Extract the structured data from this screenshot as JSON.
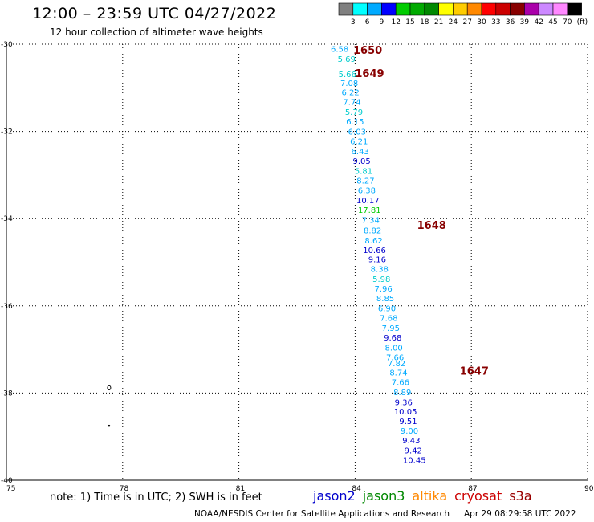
{
  "header": {
    "title": "12:00 – 23:59 UTC 04/27/2022",
    "subtitle": "12 hour collection of altimeter wave heights"
  },
  "footer": {
    "note": "note:  1) Time is in UTC;  2) SWH is in feet",
    "credit": "NOAA/NESDIS Center for Satellite Applications and Research",
    "timestamp": "Apr 29 08:29:58 UTC 2022"
  },
  "satellites": [
    {
      "name": "jason2",
      "color": "#0000cc"
    },
    {
      "name": "jason3",
      "color": "#008800"
    },
    {
      "name": "altika",
      "color": "#ff8800"
    },
    {
      "name": "cryosat",
      "color": "#cc0000"
    },
    {
      "name": "s3a",
      "color": "#990000"
    }
  ],
  "colorbar": {
    "labels": [
      "3",
      "6",
      "9",
      "12",
      "15",
      "18",
      "21",
      "24",
      "27",
      "30",
      "33",
      "36",
      "39",
      "42",
      "45",
      "70"
    ],
    "colors": [
      "#808080",
      "#00ffff",
      "#00aaff",
      "#0000ff",
      "#00cc00",
      "#00aa00",
      "#008800",
      "#ffff00",
      "#ffcc00",
      "#ff8800",
      "#ff0000",
      "#cc0000",
      "#880000",
      "#aa00aa",
      "#cc88ff",
      "#ff88ff",
      "#000000"
    ],
    "unit": "(ft)"
  },
  "chart_data": {
    "type": "scatter",
    "title": "12:00 – 23:59 UTC 04/27/2022",
    "subtitle": "12 hour collection of altimeter wave heights",
    "xlim": [
      75,
      90
    ],
    "ylim": [
      -40,
      -30
    ],
    "xticks": [
      "75",
      "78",
      "81",
      "84",
      "87",
      "90"
    ],
    "yticks": [
      "-30",
      "-32",
      "-34",
      "-36",
      "-38",
      "-40"
    ],
    "grid": true,
    "points": [
      {
        "lon": 83.6,
        "lat": -30.1,
        "swh": "6.58",
        "color": "#00aaff"
      },
      {
        "lon": 83.78,
        "lat": -30.33,
        "swh": "5.69",
        "color": "#00cccc"
      },
      {
        "lon": 83.8,
        "lat": -30.68,
        "swh": "5.66",
        "color": "#00cccc"
      },
      {
        "lon": 83.85,
        "lat": -30.88,
        "swh": "7.08",
        "color": "#00aaff"
      },
      {
        "lon": 83.88,
        "lat": -31.1,
        "swh": "6.22",
        "color": "#00aaff"
      },
      {
        "lon": 83.92,
        "lat": -31.32,
        "swh": "7.74",
        "color": "#00aaff"
      },
      {
        "lon": 83.97,
        "lat": -31.55,
        "swh": "5.79",
        "color": "#00cccc"
      },
      {
        "lon": 84.0,
        "lat": -31.77,
        "swh": "6.15",
        "color": "#00aaff"
      },
      {
        "lon": 84.05,
        "lat": -32.0,
        "swh": "6.03",
        "color": "#00aaff"
      },
      {
        "lon": 84.1,
        "lat": -32.22,
        "swh": "6.21",
        "color": "#00aaff"
      },
      {
        "lon": 84.13,
        "lat": -32.45,
        "swh": "6.43",
        "color": "#00aaff"
      },
      {
        "lon": 84.17,
        "lat": -32.67,
        "swh": "9.05",
        "color": "#0000cc"
      },
      {
        "lon": 84.22,
        "lat": -32.9,
        "swh": "5.81",
        "color": "#00cccc"
      },
      {
        "lon": 84.27,
        "lat": -33.12,
        "swh": "8.27",
        "color": "#00aaff"
      },
      {
        "lon": 84.3,
        "lat": -33.34,
        "swh": "6.38",
        "color": "#00aaff"
      },
      {
        "lon": 84.33,
        "lat": -33.57,
        "swh": "10.17",
        "color": "#0000cc"
      },
      {
        "lon": 84.37,
        "lat": -33.79,
        "swh": "17.81",
        "color": "#00cc00"
      },
      {
        "lon": 84.4,
        "lat": -34.02,
        "swh": "7.34",
        "color": "#00aaff"
      },
      {
        "lon": 84.45,
        "lat": -34.26,
        "swh": "8.82",
        "color": "#00aaff"
      },
      {
        "lon": 84.48,
        "lat": -34.49,
        "swh": "8.62",
        "color": "#00aaff"
      },
      {
        "lon": 84.5,
        "lat": -34.71,
        "swh": "10.66",
        "color": "#0000cc"
      },
      {
        "lon": 84.57,
        "lat": -34.93,
        "swh": "9.16",
        "color": "#0000cc"
      },
      {
        "lon": 84.63,
        "lat": -35.15,
        "swh": "8.38",
        "color": "#00aaff"
      },
      {
        "lon": 84.68,
        "lat": -35.38,
        "swh": "5.98",
        "color": "#00cccc"
      },
      {
        "lon": 84.73,
        "lat": -35.6,
        "swh": "7.96",
        "color": "#00aaff"
      },
      {
        "lon": 84.78,
        "lat": -35.82,
        "swh": "8.85",
        "color": "#00aaff"
      },
      {
        "lon": 84.82,
        "lat": -36.05,
        "swh": "6.90",
        "color": "#00aaff"
      },
      {
        "lon": 84.87,
        "lat": -36.27,
        "swh": "7.68",
        "color": "#00aaff"
      },
      {
        "lon": 84.92,
        "lat": -36.5,
        "swh": "7.95",
        "color": "#00aaff"
      },
      {
        "lon": 84.97,
        "lat": -36.72,
        "swh": "9.68",
        "color": "#0000cc"
      },
      {
        "lon": 85.0,
        "lat": -36.95,
        "swh": "8.00",
        "color": "#00aaff"
      },
      {
        "lon": 85.03,
        "lat": -37.17,
        "swh": "7.66",
        "color": "#00aaff"
      },
      {
        "lon": 85.07,
        "lat": -37.31,
        "swh": "7.82",
        "color": "#00aaff"
      },
      {
        "lon": 85.12,
        "lat": -37.52,
        "swh": "8.74",
        "color": "#00aaff"
      },
      {
        "lon": 85.17,
        "lat": -37.74,
        "swh": "7.66",
        "color": "#00aaff"
      },
      {
        "lon": 85.22,
        "lat": -37.97,
        "swh": "8.89",
        "color": "#00aaff"
      },
      {
        "lon": 85.25,
        "lat": -38.2,
        "swh": "9.36",
        "color": "#0000cc"
      },
      {
        "lon": 85.3,
        "lat": -38.42,
        "swh": "10.05",
        "color": "#0000cc"
      },
      {
        "lon": 85.37,
        "lat": -38.64,
        "swh": "9.51",
        "color": "#0000cc"
      },
      {
        "lon": 85.4,
        "lat": -38.86,
        "swh": "9.00",
        "color": "#00aaff"
      },
      {
        "lon": 85.45,
        "lat": -39.08,
        "swh": "9.43",
        "color": "#0000cc"
      },
      {
        "lon": 85.5,
        "lat": -39.31,
        "swh": "9.42",
        "color": "#0000cc"
      },
      {
        "lon": 85.53,
        "lat": -39.53,
        "swh": "10.45",
        "color": "#0000cc"
      }
    ],
    "pass_labels": [
      {
        "lon": 83.95,
        "lat": -30.13,
        "text": "1650"
      },
      {
        "lon": 84.0,
        "lat": -30.66,
        "text": "1649"
      },
      {
        "lon": 85.6,
        "lat": -34.14,
        "text": "1648"
      },
      {
        "lon": 86.7,
        "lat": -37.49,
        "text": "1647"
      }
    ],
    "pass_label_color": "#880000",
    "markers": [
      {
        "lon": 77.65,
        "lat": -37.88
      },
      {
        "lon": 77.65,
        "lat": -38.75
      }
    ]
  }
}
